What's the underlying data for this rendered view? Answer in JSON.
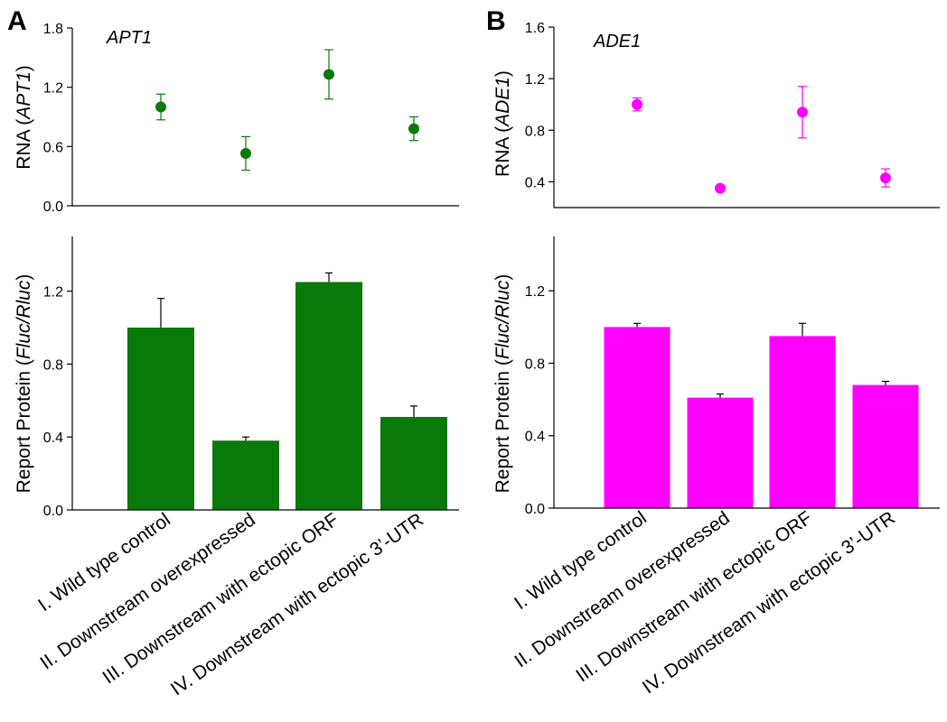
{
  "chart_data": [
    {
      "panel": "A",
      "gene": "APT1",
      "color": "#097909",
      "categories": [
        "I. Wild type control",
        "II. Downstream overexpressed",
        "III. Downstream with ectopic ORF",
        "IV. Downstream with ectopic 3’-UTR"
      ],
      "rna": {
        "type": "scatter",
        "ylabel_pre": "RNA (",
        "ylabel_it": "APT1",
        "ylabel_post": ")",
        "ylim": [
          0,
          1.8
        ],
        "ticks": [
          "0.0",
          "0.6",
          "1.2",
          "1.8"
        ],
        "values": [
          1.0,
          0.53,
          1.33,
          0.78
        ],
        "errors": [
          0.13,
          0.17,
          0.25,
          0.12
        ]
      },
      "protein": {
        "type": "bar",
        "ylabel_pre": "Report Protein (",
        "ylabel_it": "Fluc/Rluc",
        "ylabel_post": ")",
        "ylim": [
          0,
          1.5
        ],
        "ticks": [
          "0.0",
          "0.4",
          "0.8",
          "1.2"
        ],
        "values": [
          1.0,
          0.38,
          1.25,
          0.51
        ],
        "errors": [
          0.16,
          0.02,
          0.05,
          0.06
        ]
      }
    },
    {
      "panel": "B",
      "gene": "ADE1",
      "color": "#ff00ff",
      "categories": [
        "I. Wild type control",
        "II. Downstream overexpressed",
        "III. Downstream with ectopic ORF",
        "IV. Downstream with ectopic 3’-UTR"
      ],
      "rna": {
        "type": "scatter",
        "ylabel_pre": "RNA (",
        "ylabel_it": "ADE1",
        "ylabel_post": ")",
        "ylim": [
          0.2,
          1.6
        ],
        "ticks": [
          "0.4",
          "0.8",
          "1.2",
          "1.6"
        ],
        "values": [
          1.0,
          0.35,
          0.94,
          0.43
        ],
        "errors": [
          0.05,
          0.0,
          0.2,
          0.07
        ]
      },
      "protein": {
        "type": "bar",
        "ylabel_pre": "Report Protein (",
        "ylabel_it": "Fluc/Rluc",
        "ylabel_post": ")",
        "ylim": [
          0,
          1.5
        ],
        "ticks": [
          "0.0",
          "0.4",
          "0.8",
          "1.2"
        ],
        "values": [
          1.0,
          0.61,
          0.95,
          0.68
        ],
        "errors": [
          0.02,
          0.02,
          0.07,
          0.02
        ]
      }
    }
  ]
}
